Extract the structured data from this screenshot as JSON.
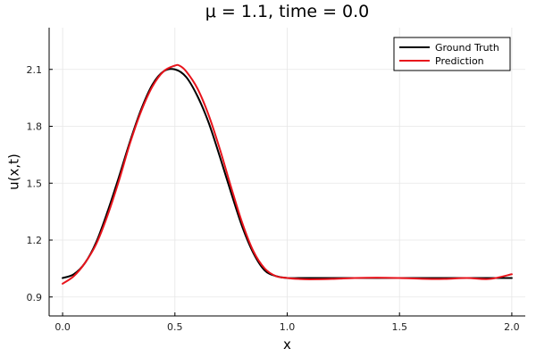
{
  "chart_data": {
    "type": "line",
    "title": "μ = 1.1, time = 0.0",
    "xlabel": "x",
    "ylabel": "u(x,t)",
    "xlim": [
      -0.06,
      2.06
    ],
    "ylim": [
      0.8,
      2.32
    ],
    "xticks": [
      0.0,
      0.5,
      1.0,
      1.5,
      2.0
    ],
    "xtick_labels": [
      "0.0",
      "0.5",
      "1.0",
      "1.5",
      "2.0"
    ],
    "yticks": [
      0.9,
      1.2,
      1.5,
      1.8,
      2.1
    ],
    "ytick_labels": [
      "0.9",
      "1.2",
      "1.5",
      "1.8",
      "2.1"
    ],
    "grid": true,
    "legend_position": "top-right",
    "series": [
      {
        "name": "Ground Truth",
        "color": "#000000",
        "x": [
          0.0,
          0.05,
          0.1,
          0.15,
          0.2,
          0.25,
          0.3,
          0.35,
          0.4,
          0.45,
          0.5,
          0.55,
          0.6,
          0.65,
          0.7,
          0.75,
          0.8,
          0.85,
          0.9,
          0.95,
          1.0,
          1.05,
          1.1,
          1.2,
          1.3,
          1.4,
          1.5,
          1.6,
          1.7,
          1.8,
          1.9,
          2.0
        ],
        "y": [
          1.0,
          1.02,
          1.08,
          1.19,
          1.35,
          1.53,
          1.72,
          1.89,
          2.02,
          2.09,
          2.1,
          2.06,
          1.96,
          1.82,
          1.64,
          1.45,
          1.27,
          1.13,
          1.04,
          1.01,
          1.0,
          1.0,
          1.0,
          1.0,
          1.0,
          1.0,
          1.0,
          1.0,
          1.0,
          1.0,
          1.0,
          1.0
        ]
      },
      {
        "name": "Prediction",
        "color": "#e8141c",
        "x": [
          0.0,
          0.05,
          0.1,
          0.15,
          0.2,
          0.25,
          0.3,
          0.35,
          0.4,
          0.45,
          0.5,
          0.52,
          0.55,
          0.6,
          0.65,
          0.7,
          0.75,
          0.8,
          0.85,
          0.9,
          0.95,
          1.0,
          1.05,
          1.1,
          1.2,
          1.3,
          1.4,
          1.5,
          1.6,
          1.7,
          1.8,
          1.9,
          2.0
        ],
        "y": [
          0.97,
          1.01,
          1.08,
          1.18,
          1.33,
          1.51,
          1.71,
          1.88,
          2.01,
          2.09,
          2.12,
          2.12,
          2.09,
          2.0,
          1.86,
          1.68,
          1.48,
          1.29,
          1.14,
          1.05,
          1.01,
          1.0,
          0.995,
          0.993,
          0.995,
          1.0,
          1.002,
          1.0,
          0.996,
          0.995,
          1.0,
          0.995,
          1.02
        ]
      }
    ]
  }
}
